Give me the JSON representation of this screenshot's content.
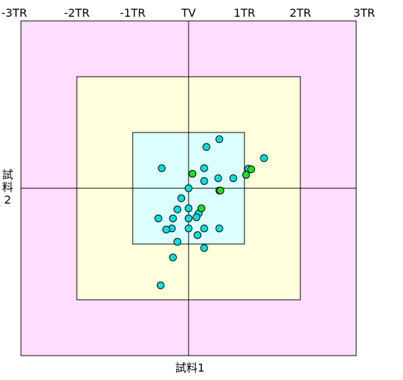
{
  "chart_data": {
    "type": "scatter",
    "title": "",
    "xlabel": "試料1",
    "ylabel_chars": [
      "試",
      "料",
      "2"
    ],
    "xlim": [
      -3,
      3
    ],
    "ylim": [
      -3,
      3
    ],
    "x_ticks": [
      {
        "value": -3,
        "label": "-3TR"
      },
      {
        "value": -2,
        "label": "-2TR"
      },
      {
        "value": -1,
        "label": "-1TR"
      },
      {
        "value": 0,
        "label": "TV"
      },
      {
        "value": 1,
        "label": "1TR"
      },
      {
        "value": 2,
        "label": "2TR"
      },
      {
        "value": 3,
        "label": "3TR"
      }
    ],
    "zones": [
      {
        "name": "outer-zone",
        "limit": 3,
        "color": "#ffddff"
      },
      {
        "name": "middle-zone",
        "limit": 2,
        "color": "#ffffdd"
      },
      {
        "name": "inner-zone",
        "limit": 1,
        "color": "#ddffff"
      }
    ],
    "series": [
      {
        "color": "#00dddd",
        "points": [
          [
            0.55,
            0.88
          ],
          [
            0.32,
            0.74
          ],
          [
            -0.48,
            0.36
          ],
          [
            0.28,
            0.36
          ],
          [
            0.53,
            0.18
          ],
          [
            0.28,
            0.13
          ],
          [
            0.8,
            0.18
          ],
          [
            1.07,
            0.35
          ],
          [
            1.35,
            0.54
          ],
          [
            0.0,
            0.0
          ],
          [
            -0.13,
            -0.18
          ],
          [
            0.55,
            -0.04
          ],
          [
            0.0,
            -0.36
          ],
          [
            -0.2,
            -0.38
          ],
          [
            0.18,
            -0.45
          ],
          [
            -0.54,
            -0.54
          ],
          [
            -0.28,
            -0.54
          ],
          [
            0.0,
            -0.54
          ],
          [
            0.14,
            -0.52
          ],
          [
            -0.3,
            -0.72
          ],
          [
            -0.4,
            -0.74
          ],
          [
            0.0,
            -0.72
          ],
          [
            0.28,
            -0.72
          ],
          [
            0.55,
            -0.72
          ],
          [
            0.16,
            -0.84
          ],
          [
            -0.2,
            -0.96
          ],
          [
            0.28,
            -1.07
          ],
          [
            -0.28,
            -1.24
          ],
          [
            -0.5,
            -1.74
          ]
        ]
      },
      {
        "color": "#22dd22",
        "points": [
          [
            0.07,
            0.26
          ],
          [
            1.12,
            0.34
          ],
          [
            1.03,
            0.24
          ],
          [
            0.57,
            -0.04
          ],
          [
            0.23,
            -0.36
          ]
        ]
      }
    ]
  }
}
